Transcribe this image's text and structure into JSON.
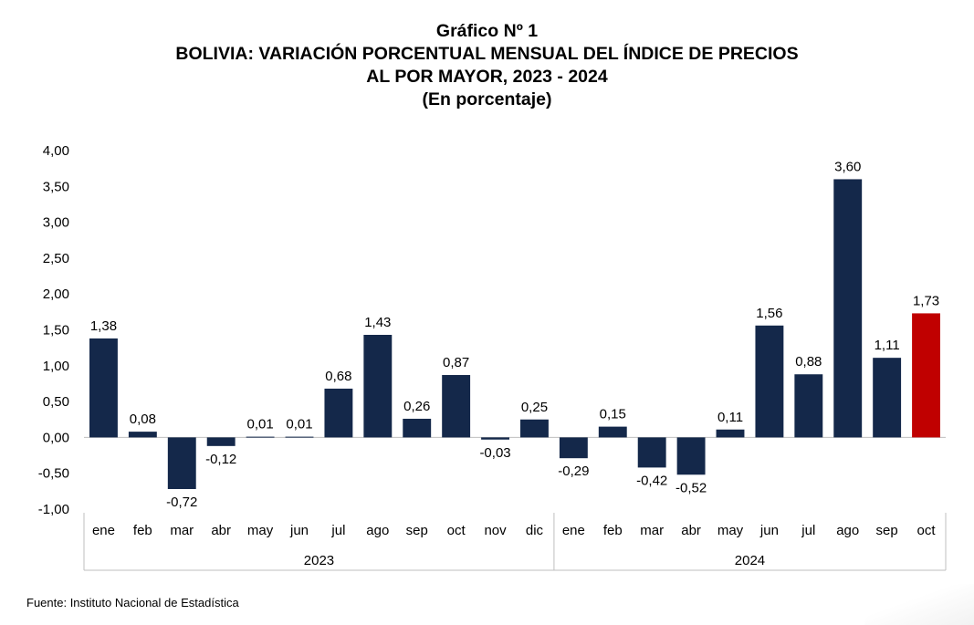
{
  "header": {
    "line1": "Gráfico Nº 1",
    "line2": "BOLIVIA: VARIACIÓN PORCENTUAL MENSUAL DEL ÍNDICE DE PRECIOS",
    "line3": "AL POR MAYOR, 2023 - 2024",
    "line4": "(En porcentaje)"
  },
  "footer": {
    "source": "Fuente: Instituto Nacional de Estadística"
  },
  "chart_data": {
    "type": "bar",
    "title": "BOLIVIA: VARIACIÓN PORCENTUAL MENSUAL DEL ÍNDICE DE PRECIOS AL POR MAYOR, 2023 - 2024",
    "ylim": [
      -1.0,
      4.0
    ],
    "yticks": [
      "4,00",
      "3,50",
      "3,00",
      "2,50",
      "2,00",
      "1,50",
      "1,00",
      "0,50",
      "0,00",
      "-0,50",
      "-1,00"
    ],
    "ytick_values": [
      4.0,
      3.5,
      3.0,
      2.5,
      2.0,
      1.5,
      1.0,
      0.5,
      0.0,
      -0.5,
      -1.0
    ],
    "categories": [
      "ene",
      "feb",
      "mar",
      "abr",
      "may",
      "jun",
      "jul",
      "ago",
      "sep",
      "oct",
      "nov",
      "dic",
      "ene",
      "feb",
      "mar",
      "abr",
      "may",
      "jun",
      "jul",
      "ago",
      "sep",
      "oct"
    ],
    "groups": [
      {
        "label": "2023",
        "count": 12
      },
      {
        "label": "2024",
        "count": 10
      }
    ],
    "values": [
      1.38,
      0.08,
      -0.72,
      -0.12,
      0.01,
      0.01,
      0.68,
      1.43,
      0.26,
      0.87,
      -0.03,
      0.25,
      -0.29,
      0.15,
      -0.42,
      -0.52,
      0.11,
      1.56,
      0.88,
      3.6,
      1.11,
      1.73
    ],
    "labels": [
      "1,38",
      "0,08",
      "-0,72",
      "-0,12",
      "0,01",
      "0,01",
      "0,68",
      "1,43",
      "0,26",
      "0,87",
      "-0,03",
      "0,25",
      "-0,29",
      "0,15",
      "-0,42",
      "-0,52",
      "0,11",
      "1,56",
      "0,88",
      "3,60",
      "1,11",
      "1,73"
    ],
    "colors": {
      "default": "#14284a",
      "highlight": "#c00000",
      "axis": "#bfbfbf"
    },
    "highlight_index": 21,
    "grid": false,
    "legend": "none"
  }
}
